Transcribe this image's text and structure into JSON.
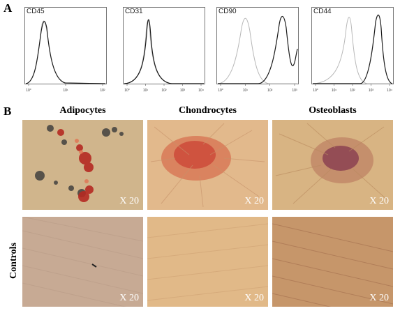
{
  "panel_a": {
    "letter": "A",
    "histograms": [
      {
        "label": "CD45",
        "ticks": [
          "10°",
          "10¹",
          "10²"
        ],
        "overlay": true,
        "shift": "none"
      },
      {
        "label": "CD31",
        "ticks": [
          "10°",
          "10¹",
          "10²",
          "10³",
          "10⁴"
        ],
        "overlay": true,
        "shift": "none"
      },
      {
        "label": "CD90",
        "ticks": [
          "10°",
          "10¹",
          "10²",
          "10³"
        ],
        "overlay": false,
        "shift": "positive"
      },
      {
        "label": "CD44",
        "ticks": [
          "10°",
          "10¹",
          "10²",
          "10³",
          "10⁴"
        ],
        "overlay": false,
        "shift": "positive"
      }
    ]
  },
  "panel_b": {
    "letter": "B",
    "columns": [
      "Adipocytes",
      "Chondrocytes",
      "Osteoblasts"
    ],
    "row_label": "Controls",
    "magnification": "X 20"
  },
  "colors": {
    "isotype_line": "#b8b8b8",
    "stain_line": "#1a1a1a",
    "adipo_bg": "#d8c29a",
    "chondro_bg": "#e0b88a",
    "osteo_bg": "#d6b080",
    "stain_red": "#c8332a",
    "stain_purple": "#7a2a4a"
  }
}
